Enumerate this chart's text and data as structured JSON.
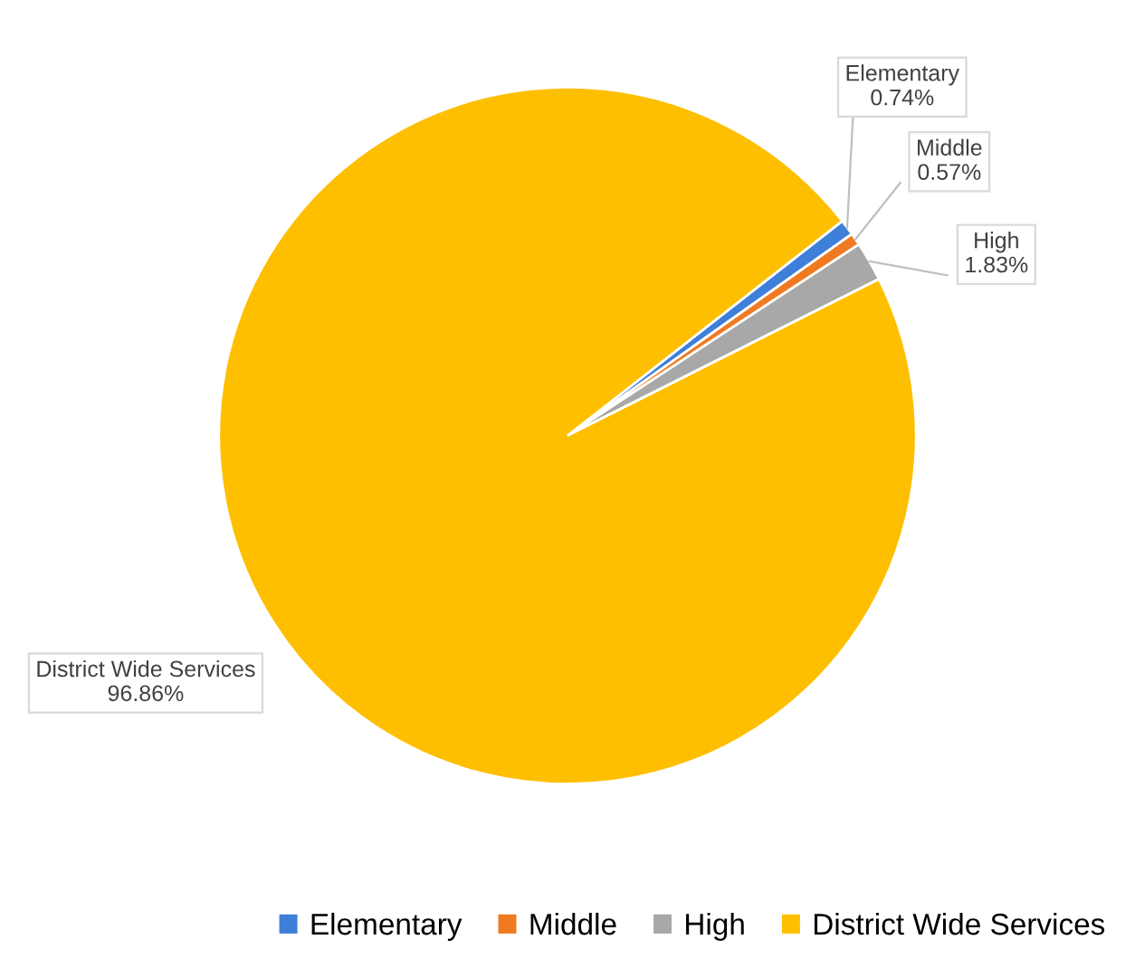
{
  "chart_data": {
    "type": "pie",
    "categories": [
      "Elementary",
      "Middle",
      "High",
      "District Wide Services"
    ],
    "values": [
      0.74,
      0.57,
      1.83,
      96.86
    ],
    "colors": [
      "#3d7fd9",
      "#f07a22",
      "#a8a8a8",
      "#fdbf00"
    ],
    "value_labels": [
      "0.74%",
      "0.57%",
      "1.83%",
      "96.86%"
    ],
    "legend": "bottom"
  }
}
